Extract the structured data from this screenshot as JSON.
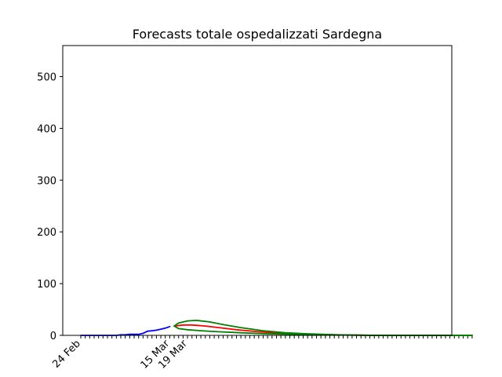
{
  "chart_data": {
    "type": "line",
    "title": "Forecasts totale ospedalizzati Sardegna",
    "xlabel": "",
    "ylabel": "",
    "x_start": "2020-02-24",
    "x_end": "2020-05-22",
    "xlim": [
      "2020-02-24",
      "2020-05-22"
    ],
    "ylim": [
      0,
      560
    ],
    "yticks": [
      0,
      100,
      200,
      300,
      400,
      500
    ],
    "xtick_labels": [
      {
        "date": "2020-02-24",
        "label": "24 Feb"
      },
      {
        "date": "2020-03-15",
        "label": "15 Mar"
      },
      {
        "date": "2020-03-19",
        "label": "19 Mar"
      }
    ],
    "grid": false,
    "legend": "none",
    "series": [
      {
        "color": "#0000ff",
        "points": [
          [
            "2020-02-24",
            0
          ],
          [
            "2020-02-26",
            0
          ],
          [
            "2020-02-28",
            0
          ],
          [
            "2020-03-01",
            0
          ],
          [
            "2020-03-03",
            0
          ],
          [
            "2020-03-04",
            1
          ],
          [
            "2020-03-05",
            1
          ],
          [
            "2020-03-06",
            2
          ],
          [
            "2020-03-07",
            2
          ],
          [
            "2020-03-08",
            2
          ],
          [
            "2020-03-09",
            4
          ],
          [
            "2020-03-10",
            8
          ],
          [
            "2020-03-11",
            9
          ],
          [
            "2020-03-12",
            10
          ],
          [
            "2020-03-13",
            12
          ],
          [
            "2020-03-14",
            14
          ],
          [
            "2020-03-15",
            17
          ]
        ]
      },
      {
        "color": "#ff0000",
        "points": [
          [
            "2020-03-16",
            18
          ],
          [
            "2020-03-18",
            20
          ],
          [
            "2020-03-20",
            20
          ],
          [
            "2020-03-23",
            18
          ],
          [
            "2020-03-26",
            15
          ],
          [
            "2020-03-30",
            11
          ],
          [
            "2020-04-04",
            7
          ],
          [
            "2020-04-09",
            4
          ],
          [
            "2020-04-14",
            2
          ],
          [
            "2020-04-20",
            1
          ],
          [
            "2020-04-30",
            0
          ],
          [
            "2020-05-22",
            0
          ]
        ]
      },
      {
        "color": "#008000",
        "points": [
          [
            "2020-03-16",
            18
          ],
          [
            "2020-03-17",
            24
          ],
          [
            "2020-03-19",
            28
          ],
          [
            "2020-03-21",
            29
          ],
          [
            "2020-03-24",
            26
          ],
          [
            "2020-03-27",
            21
          ],
          [
            "2020-03-31",
            15
          ],
          [
            "2020-04-05",
            9
          ],
          [
            "2020-04-10",
            5
          ],
          [
            "2020-04-15",
            3
          ],
          [
            "2020-04-22",
            1
          ],
          [
            "2020-05-01",
            0
          ],
          [
            "2020-05-22",
            0
          ]
        ]
      },
      {
        "color": "#008000",
        "points": [
          [
            "2020-03-16",
            18
          ],
          [
            "2020-03-17",
            13
          ],
          [
            "2020-03-19",
            11
          ],
          [
            "2020-03-22",
            9
          ],
          [
            "2020-03-26",
            7
          ],
          [
            "2020-03-31",
            5
          ],
          [
            "2020-04-06",
            3
          ],
          [
            "2020-04-12",
            2
          ],
          [
            "2020-04-20",
            1
          ],
          [
            "2020-04-30",
            0
          ],
          [
            "2020-05-22",
            0
          ]
        ]
      }
    ]
  }
}
